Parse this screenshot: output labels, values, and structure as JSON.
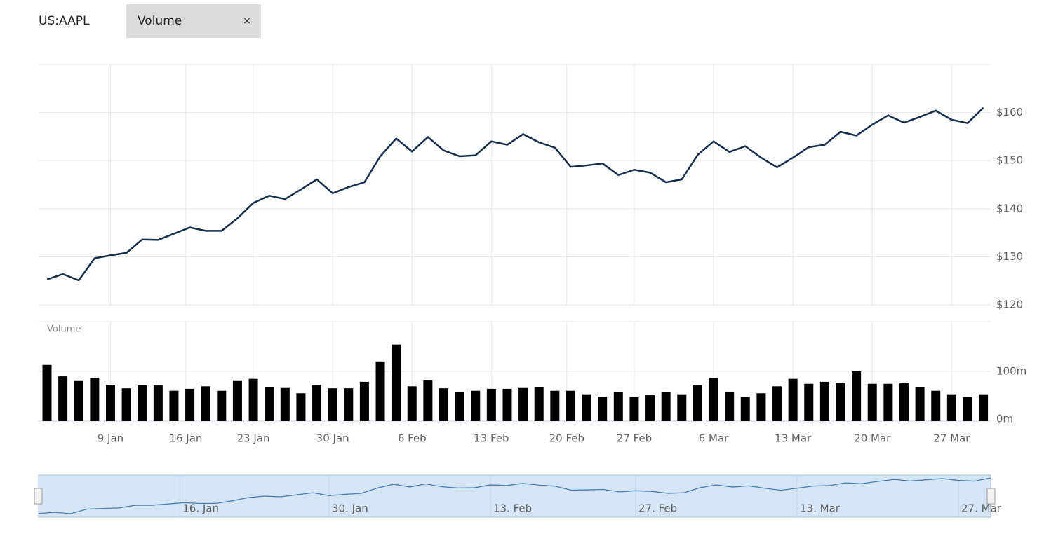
{
  "header": {
    "symbol": "US:AAPL",
    "indicator": "Volume",
    "close": "×"
  },
  "chart_data": [
    {
      "type": "line",
      "series": [
        {
          "name": "US:AAPL",
          "color": "#142d4c",
          "values": [
            125.3,
            126.4,
            125.1,
            129.7,
            130.3,
            130.8,
            133.6,
            133.5,
            134.8,
            136.1,
            135.4,
            135.4,
            138.0,
            141.2,
            142.7,
            142.0,
            144.0,
            146.1,
            143.2,
            144.5,
            145.5,
            150.9,
            154.6,
            151.9,
            154.9,
            152.1,
            150.9,
            151.1,
            154.0,
            153.3,
            155.5,
            153.8,
            152.7,
            148.7,
            149.0,
            149.4,
            147.0,
            148.1,
            147.5,
            145.5,
            146.1,
            151.2,
            154.0,
            151.8,
            153.0,
            150.6,
            148.6,
            150.6,
            152.8,
            153.3,
            156.0,
            155.2,
            157.5,
            159.4,
            157.9,
            159.1,
            160.4,
            158.5,
            157.8,
            161.0
          ]
        }
      ],
      "ylim": [
        120,
        170
      ],
      "yticks": [
        {
          "value": 120,
          "label": "$120"
        },
        {
          "value": 130,
          "label": "$130"
        },
        {
          "value": 140,
          "label": "$140"
        },
        {
          "value": 150,
          "label": "$150"
        },
        {
          "value": 160,
          "label": "$160"
        }
      ],
      "grid": true
    },
    {
      "type": "bar",
      "title": "Volume",
      "color": "#000000",
      "values": [
        113,
        90,
        82,
        87,
        73,
        66,
        72,
        73,
        61,
        65,
        70,
        61,
        82,
        85,
        69,
        68,
        56,
        73,
        66,
        66,
        79,
        120,
        154,
        70,
        83,
        66,
        58,
        61,
        65,
        65,
        68,
        69,
        61,
        61,
        54,
        49,
        58,
        48,
        52,
        58,
        54,
        73,
        87,
        58,
        49,
        56,
        70,
        85,
        75,
        79,
        76,
        100,
        75,
        75,
        76,
        69,
        61,
        54,
        48,
        54
      ],
      "ylim": [
        0,
        200
      ],
      "yticks": [
        {
          "value": 0,
          "label": "0m"
        },
        {
          "value": 100,
          "label": "100m"
        }
      ],
      "xticks": [
        {
          "value": 4,
          "label": "9 Jan"
        },
        {
          "value": 8.75,
          "label": "16 Jan"
        },
        {
          "value": 13,
          "label": "23 Jan"
        },
        {
          "value": 18,
          "label": "30 Jan"
        },
        {
          "value": 23,
          "label": "6 Feb"
        },
        {
          "value": 28,
          "label": "13 Feb"
        },
        {
          "value": 32.75,
          "label": "20 Feb"
        },
        {
          "value": 37,
          "label": "27 Feb"
        },
        {
          "value": 42,
          "label": "6 Mar"
        },
        {
          "value": 47,
          "label": "13 Mar"
        },
        {
          "value": 52,
          "label": "20 Mar"
        },
        {
          "value": 57,
          "label": "27 Mar"
        }
      ],
      "grid": true
    }
  ],
  "navigator": {
    "xticks": [
      {
        "value": 8.75,
        "label": "16. Jan"
      },
      {
        "value": 18,
        "label": "30. Jan"
      },
      {
        "value": 28,
        "label": "13. Feb"
      },
      {
        "value": 37,
        "label": "27. Feb"
      },
      {
        "value": 47,
        "label": "13. Mar"
      },
      {
        "value": 57,
        "label": "27. Mar"
      }
    ]
  }
}
